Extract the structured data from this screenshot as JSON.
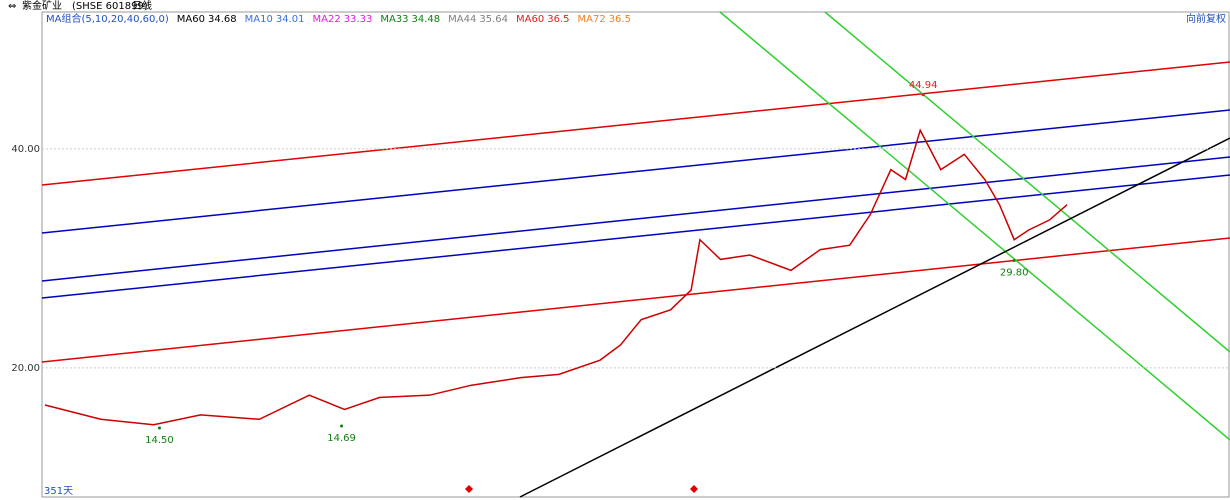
{
  "header": {
    "title": "紫金矿业",
    "code": "(SHSE 601899)",
    "period": "日线",
    "adjust": "向前复权",
    "days": "351天"
  },
  "chart_data": {
    "type": "line",
    "ma_group": "MA组合(5,10,20,40,60,0)",
    "ma_legend": [
      {
        "name": "MA60",
        "value": 34.68,
        "color": "#000000"
      },
      {
        "name": "MA10",
        "value": 34.01,
        "color": "#3a6fd8"
      },
      {
        "name": "MA22",
        "value": 33.33,
        "color": "#e020e0"
      },
      {
        "name": "MA33",
        "value": 34.48,
        "color": "#108010"
      },
      {
        "name": "MA44",
        "value": 35.64,
        "color": "#808080"
      },
      {
        "name": "MA60",
        "value": 36.5,
        "color": "#e02020"
      },
      {
        "name": "MA72",
        "value": 36.5,
        "color": "#f08020"
      }
    ],
    "x": [
      1,
      20,
      38,
      54,
      74,
      91,
      103,
      115,
      132,
      146,
      163,
      176,
      190,
      197,
      204,
      214,
      221,
      224,
      231,
      241,
      255,
      265,
      275,
      282,
      289,
      294,
      299,
      306,
      314,
      321,
      326,
      331,
      336,
      343,
      349
    ],
    "values": [
      16.6,
      15.3,
      14.8,
      15.7,
      15.3,
      17.5,
      16.2,
      17.3,
      17.5,
      18.4,
      19.1,
      19.4,
      20.7,
      22.1,
      24.4,
      25.3,
      27.1,
      31.7,
      29.9,
      30.3,
      28.9,
      30.8,
      31.2,
      34.0,
      38.1,
      37.2,
      41.7,
      38.1,
      39.5,
      37.2,
      34.9,
      31.7,
      32.6,
      33.5,
      34.9
    ],
    "color": "#cc0000",
    "xlim": [
      0,
      350
    ],
    "ylim": [
      8.2,
      52.5
    ],
    "yticks": [
      {
        "value": 20,
        "label": "20.00"
      },
      {
        "value": 40,
        "label": "40.00"
      }
    ],
    "grid": true,
    "annotations": [
      {
        "value": 44.94,
        "label": "44.94",
        "x": 300,
        "color": "#e02020"
      },
      {
        "value": 29.8,
        "label": "29.80",
        "x": 331,
        "color": "#108010"
      },
      {
        "value": 14.5,
        "label": "14.50",
        "x": 40,
        "color": "#108010"
      },
      {
        "value": 14.69,
        "label": "14.69",
        "x": 102,
        "color": "#108010"
      }
    ]
  }
}
